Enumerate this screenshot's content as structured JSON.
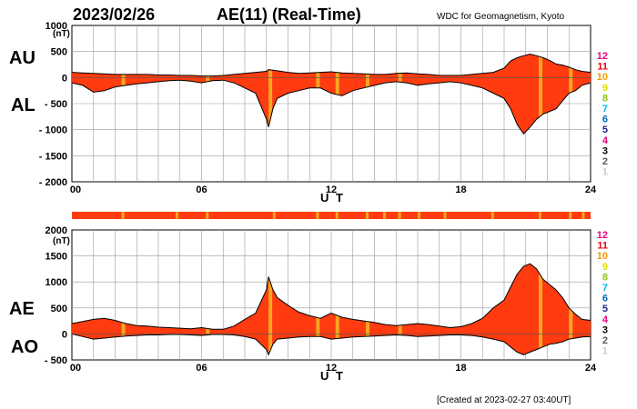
{
  "header": {
    "date": "2023/02/26",
    "title": "AE(11) (Real-Time)",
    "org": "WDC for Geomagnetism, Kyoto"
  },
  "footer": {
    "created": "[Created at 2023-02-27 03:40UT]"
  },
  "colors": {
    "fill": "#ff3b0f",
    "hilite": "#f5a623",
    "line": "#000000",
    "grid": "#9a9a9a"
  },
  "scale_legend": [
    {
      "label": "12",
      "color": "#e6007e"
    },
    {
      "label": "11",
      "color": "#e60012"
    },
    {
      "label": "10",
      "color": "#f39800"
    },
    {
      "label": "9",
      "color": "#dede00"
    },
    {
      "label": "8",
      "color": "#8fc31f"
    },
    {
      "label": "7",
      "color": "#00b7ee"
    },
    {
      "label": "6",
      "color": "#0068b7"
    },
    {
      "label": "5",
      "color": "#1d2088"
    },
    {
      "label": "4",
      "color": "#e4007f"
    },
    {
      "label": "3",
      "color": "#000000"
    },
    {
      "label": "2",
      "color": "#595757"
    },
    {
      "label": "1",
      "color": "#c9caca"
    }
  ],
  "chart_data": [
    {
      "type": "area",
      "panel": "AU/AL",
      "upper_label": "AU",
      "lower_label": "AL",
      "unit": "(nT)",
      "xlabel": "U T",
      "xlim": [
        0,
        24
      ],
      "ylim": [
        -2000,
        1000
      ],
      "xticks": [
        "00",
        "06",
        "12",
        "18",
        "24"
      ],
      "yticks": [
        "1000",
        "500",
        "0",
        "- 500",
        "- 1000",
        "- 1500",
        "- 2000"
      ],
      "grid": true,
      "x": [
        0,
        0.5,
        1,
        1.5,
        2,
        2.5,
        3,
        3.5,
        4,
        4.5,
        5,
        5.5,
        6,
        6.5,
        7,
        7.5,
        8,
        8.5,
        9,
        9.1,
        9.3,
        9.5,
        10,
        10.5,
        11,
        11.5,
        12,
        12.5,
        13,
        13.5,
        14,
        14.5,
        15,
        15.5,
        16,
        16.5,
        17,
        17.5,
        18,
        18.5,
        19,
        19.5,
        20,
        20.3,
        20.6,
        20.9,
        21.2,
        21.5,
        21.8,
        22.1,
        22.4,
        22.7,
        23,
        23.3,
        23.6,
        24
      ],
      "series": [
        {
          "values": [
            100,
            90,
            80,
            70,
            60,
            60,
            60,
            60,
            50,
            50,
            40,
            40,
            30,
            30,
            40,
            60,
            80,
            100,
            120,
            150,
            140,
            130,
            100,
            80,
            90,
            100,
            110,
            90,
            80,
            70,
            60,
            60,
            80,
            90,
            70,
            60,
            40,
            40,
            40,
            60,
            80,
            100,
            180,
            320,
            380,
            420,
            450,
            420,
            380,
            330,
            260,
            240,
            200,
            150,
            120,
            100
          ]
        },
        {
          "values": [
            -100,
            -150,
            -280,
            -250,
            -180,
            -150,
            -120,
            -100,
            -80,
            -60,
            -50,
            -70,
            -100,
            -60,
            -50,
            -100,
            -200,
            -300,
            -800,
            -950,
            -600,
            -400,
            -300,
            -250,
            -200,
            -200,
            -300,
            -350,
            -250,
            -200,
            -150,
            -100,
            -80,
            -100,
            -150,
            -120,
            -100,
            -80,
            -100,
            -150,
            -200,
            -300,
            -400,
            -600,
            -900,
            -1080,
            -950,
            -800,
            -700,
            -650,
            -600,
            -450,
            -300,
            -250,
            -150,
            -100
          ]
        }
      ]
    },
    {
      "type": "area",
      "panel": "AE/AO",
      "upper_label": "AE",
      "lower_label": "AO",
      "unit": "(nT)",
      "xlabel": "U T",
      "xlim": [
        0,
        24
      ],
      "ylim": [
        -500,
        2000
      ],
      "xticks": [
        "00",
        "06",
        "12",
        "18",
        "24"
      ],
      "yticks": [
        "2000",
        "1500",
        "1000",
        "500",
        "0",
        "- 500"
      ],
      "grid": true,
      "x": [
        0,
        0.5,
        1,
        1.5,
        2,
        2.5,
        3,
        3.5,
        4,
        4.5,
        5,
        5.5,
        6,
        6.5,
        7,
        7.5,
        8,
        8.5,
        9,
        9.1,
        9.3,
        9.5,
        10,
        10.5,
        11,
        11.5,
        12,
        12.5,
        13,
        13.5,
        14,
        14.5,
        15,
        15.5,
        16,
        16.5,
        17,
        17.5,
        18,
        18.5,
        19,
        19.5,
        20,
        20.3,
        20.6,
        20.9,
        21.2,
        21.5,
        21.8,
        22.1,
        22.4,
        22.7,
        23,
        23.3,
        23.6,
        24
      ],
      "series": [
        {
          "values": [
            200,
            240,
            280,
            300,
            260,
            200,
            160,
            150,
            130,
            120,
            110,
            100,
            120,
            90,
            90,
            150,
            280,
            400,
            850,
            1100,
            850,
            700,
            550,
            420,
            350,
            300,
            400,
            320,
            280,
            250,
            220,
            180,
            160,
            180,
            200,
            180,
            150,
            120,
            140,
            200,
            300,
            500,
            650,
            900,
            1150,
            1300,
            1350,
            1250,
            1050,
            950,
            850,
            700,
            500,
            380,
            280,
            260
          ]
        },
        {
          "values": [
            0,
            -50,
            -100,
            -80,
            -60,
            -40,
            -30,
            -20,
            -20,
            -10,
            -10,
            -20,
            -30,
            -10,
            -10,
            -20,
            -50,
            -100,
            -300,
            -400,
            -200,
            -100,
            -80,
            -60,
            -50,
            -50,
            -100,
            -80,
            -60,
            -50,
            -40,
            -30,
            -20,
            -30,
            -50,
            -40,
            -30,
            -20,
            -20,
            -30,
            -60,
            -100,
            -150,
            -250,
            -350,
            -400,
            -350,
            -300,
            -250,
            -200,
            -180,
            -150,
            -100,
            -80,
            -60,
            -50
          ]
        }
      ]
    }
  ]
}
